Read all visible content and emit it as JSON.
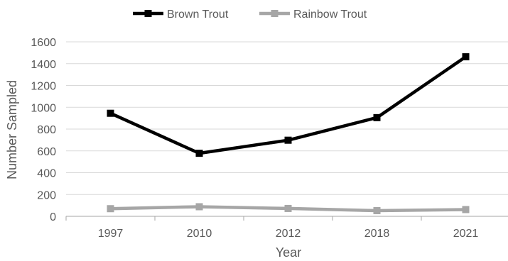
{
  "chart_data": {
    "type": "line",
    "categories": [
      "1997",
      "2010",
      "2012",
      "2018",
      "2021"
    ],
    "series": [
      {
        "name": "Brown Trout",
        "values": [
          945,
          578,
          698,
          905,
          1463
        ],
        "color": "#000000",
        "marker": "square"
      },
      {
        "name": "Rainbow Trout",
        "values": [
          70,
          88,
          72,
          52,
          62
        ],
        "color": "#a6a6a6",
        "marker": "square"
      }
    ],
    "xlabel": "Year",
    "ylabel": "Number Sampled",
    "ylim": [
      0,
      1600
    ],
    "yticks": [
      0,
      200,
      400,
      600,
      800,
      1000,
      1200,
      1400,
      1600
    ],
    "grid": true,
    "legend_position": "top-center"
  }
}
